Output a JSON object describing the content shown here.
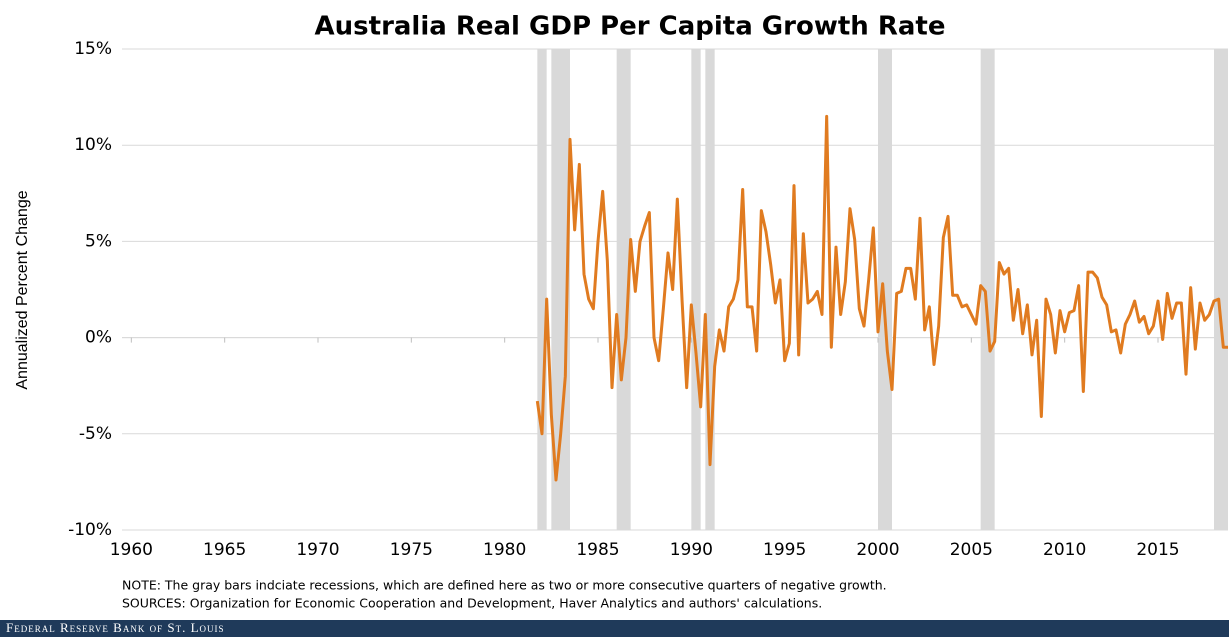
{
  "chart_data": {
    "type": "line",
    "title": "Australia Real GDP Per Capita Growth Rate",
    "y_label": "Annualized Percent Change",
    "note": "NOTE: The gray bars indciate recessions, which are defined here as two or more  consecutive quarters of negative growth.",
    "sources": "SOURCES: Organization for Economic Cooperation and Development, Haver Analytics and authors' calculations.",
    "footer": "Federal Reserve Bank of St. Louis",
    "xlim": [
      1959.5,
      2018.75
    ],
    "xticks": [
      1960,
      1965,
      1970,
      1975,
      1980,
      1985,
      1990,
      1995,
      2000,
      2005,
      2010,
      2015
    ],
    "ylim": [
      -10,
      15
    ],
    "yticks": [
      {
        "value": -10,
        "label": "-10%"
      },
      {
        "value": -5,
        "label": "-5%"
      },
      {
        "value": 0,
        "label": "0%"
      },
      {
        "value": 5,
        "label": "5%"
      },
      {
        "value": 10,
        "label": "10%"
      },
      {
        "value": 15,
        "label": "15%"
      }
    ],
    "grid": true,
    "recession_color": "#d9d9d9",
    "recessions": [
      [
        1981.75,
        1982.25
      ],
      [
        1982.5,
        1983.5
      ],
      [
        1986,
        1986.75
      ],
      [
        1990,
        1990.5
      ],
      [
        1990.75,
        1991.25
      ],
      [
        2000,
        2000.75
      ],
      [
        2005.5,
        2006.25
      ],
      [
        2018,
        2018.75
      ]
    ],
    "x": [
      1981.75,
      1982,
      1982.25,
      1982.5,
      1982.75,
      1983,
      1983.25,
      1983.5,
      1983.75,
      1984,
      1984.25,
      1984.5,
      1984.75,
      1985,
      1985.25,
      1985.5,
      1985.75,
      1986,
      1986.25,
      1986.5,
      1986.75,
      1987,
      1987.25,
      1987.5,
      1987.75,
      1988,
      1988.25,
      1988.5,
      1988.75,
      1989,
      1989.25,
      1989.5,
      1989.75,
      1990,
      1990.25,
      1990.5,
      1990.75,
      1991,
      1991.25,
      1991.5,
      1991.75,
      1992,
      1992.25,
      1992.5,
      1992.75,
      1993,
      1993.25,
      1993.5,
      1993.75,
      1994,
      1994.25,
      1994.5,
      1994.75,
      1995,
      1995.25,
      1995.5,
      1995.75,
      1996,
      1996.25,
      1996.5,
      1996.75,
      1997,
      1997.25,
      1997.5,
      1997.75,
      1998,
      1998.25,
      1998.5,
      1998.75,
      1999,
      1999.25,
      1999.5,
      1999.75,
      2000,
      2000.25,
      2000.5,
      2000.75,
      2001,
      2001.25,
      2001.5,
      2001.75,
      2002,
      2002.25,
      2002.5,
      2002.75,
      2003,
      2003.25,
      2003.5,
      2003.75,
      2004,
      2004.25,
      2004.5,
      2004.75,
      2005,
      2005.25,
      2005.5,
      2005.75,
      2006,
      2006.25,
      2006.5,
      2006.75,
      2007,
      2007.25,
      2007.5,
      2007.75,
      2008,
      2008.25,
      2008.5,
      2008.75,
      2009,
      2009.25,
      2009.5,
      2009.75,
      2010,
      2010.25,
      2010.5,
      2010.75,
      2011,
      2011.25,
      2011.5,
      2011.75,
      2012,
      2012.25,
      2012.5,
      2012.75,
      2013,
      2013.25,
      2013.5,
      2013.75,
      2014,
      2014.25,
      2014.5,
      2014.75,
      2015,
      2015.25,
      2015.5,
      2015.75,
      2016,
      2016.25,
      2016.5,
      2016.75,
      2017,
      2017.25,
      2017.5,
      2017.75,
      2018,
      2018.25,
      2018.5,
      2018.75
    ],
    "color": "#e07b20",
    "values": [
      -3.3,
      -5.0,
      2.0,
      -4.0,
      -7.4,
      -5.0,
      -2.0,
      10.3,
      5.6,
      9.0,
      3.3,
      2.0,
      1.5,
      5.0,
      7.6,
      4.0,
      -2.6,
      1.2,
      -2.2,
      0.0,
      5.1,
      2.4,
      5.0,
      5.8,
      6.5,
      0.0,
      -1.2,
      1.5,
      4.4,
      2.5,
      7.2,
      2.0,
      -2.6,
      1.7,
      -0.8,
      -3.6,
      1.2,
      -6.6,
      -1.5,
      0.4,
      -0.7,
      1.6,
      2.0,
      3.0,
      7.7,
      1.6,
      1.6,
      -0.7,
      6.6,
      5.5,
      3.8,
      1.8,
      3.0,
      -1.2,
      -0.3,
      7.9,
      -0.9,
      5.4,
      1.8,
      2.0,
      2.4,
      1.2,
      11.5,
      -0.5,
      4.7,
      1.2,
      2.9,
      6.7,
      5.1,
      1.5,
      0.6,
      3.0,
      5.7,
      0.3,
      2.8,
      -0.7,
      -2.7,
      2.3,
      2.4,
      3.6,
      3.6,
      2.0,
      6.2,
      0.4,
      1.6,
      -1.4,
      0.6,
      5.2,
      6.3,
      2.2,
      2.2,
      1.6,
      1.7,
      1.2,
      0.7,
      2.7,
      2.4,
      -0.7,
      -0.2,
      3.9,
      3.3,
      3.6,
      0.9,
      2.5,
      0.2,
      1.7,
      -0.9,
      0.9,
      -4.1,
      2.0,
      1.2,
      -0.8,
      1.4,
      0.3,
      1.3,
      1.4,
      2.7,
      -2.8,
      3.4,
      3.4,
      3.1,
      2.1,
      1.7,
      0.3,
      0.4,
      -0.8,
      0.7,
      1.2,
      1.9,
      0.8,
      1.1,
      0.2,
      0.6,
      1.9,
      -0.1,
      2.3,
      1.0,
      1.8,
      1.8,
      -1.9,
      2.6,
      -0.6,
      1.8,
      0.9,
      1.2,
      1.9,
      2.0,
      -0.5,
      -0.5
    ]
  }
}
